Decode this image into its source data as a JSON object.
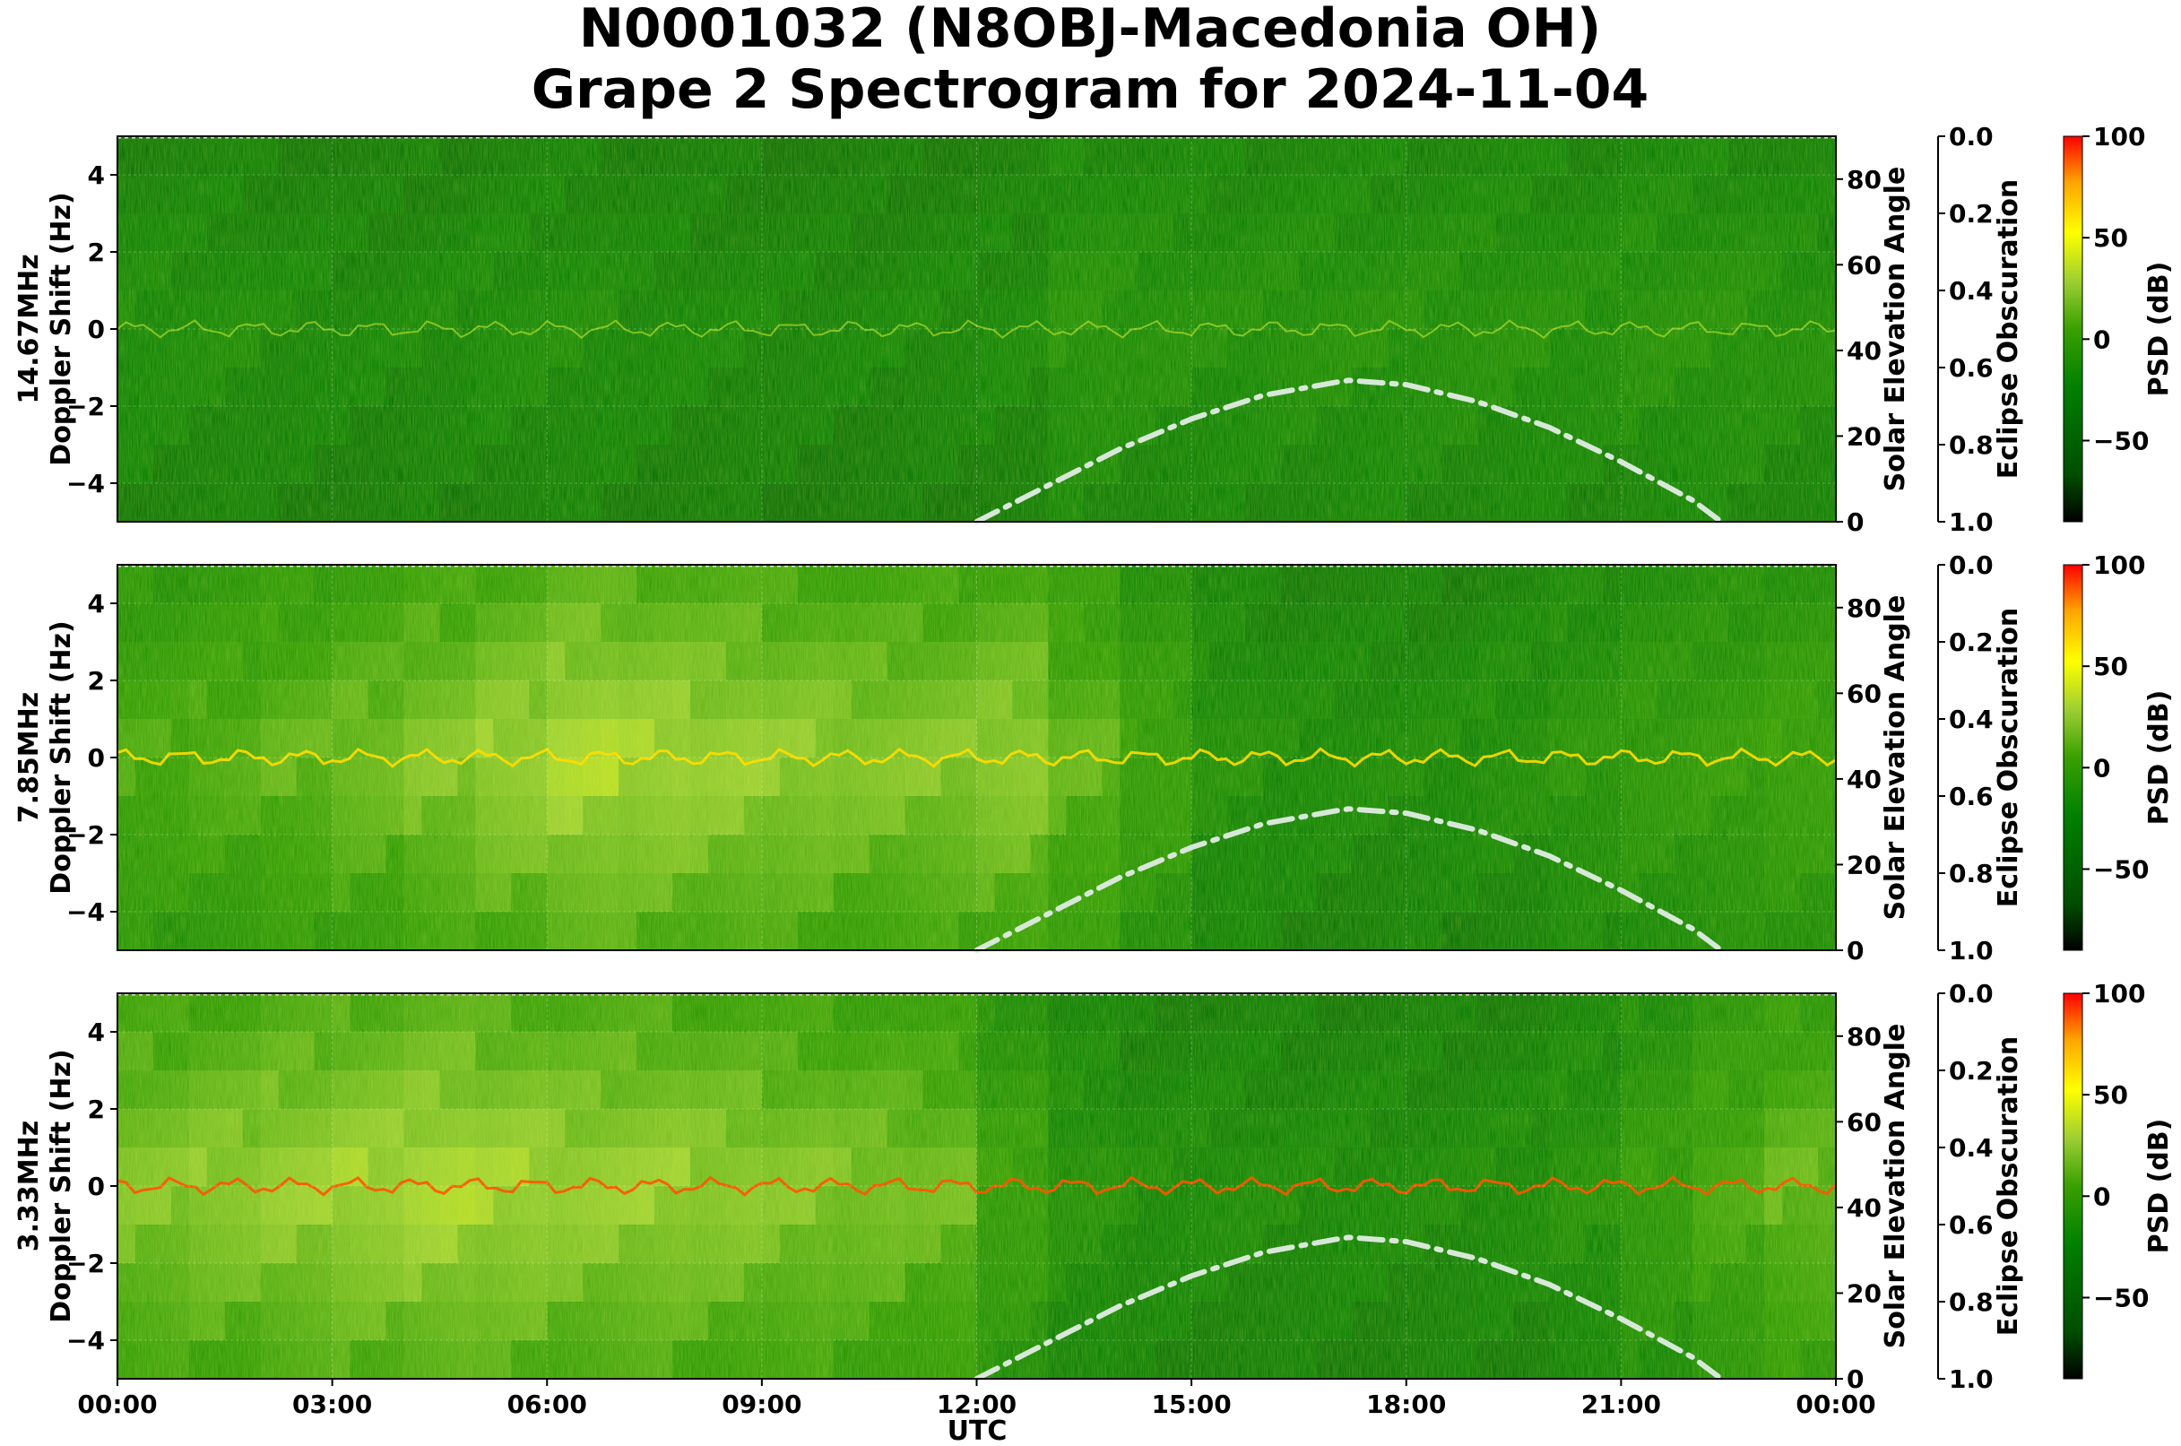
{
  "title_line1": "N0001032 (N8OBJ-Macedonia OH)",
  "title_line2": "Grape 2 Spectrogram for 2024-11-04",
  "xlabel": "UTC",
  "x_ticks": [
    "00:00",
    "03:00",
    "06:00",
    "09:00",
    "12:00",
    "15:00",
    "18:00",
    "21:00",
    "00:00"
  ],
  "left_ticks": [
    "4",
    "2",
    "0",
    "−2",
    "−4"
  ],
  "elev_ticks": [
    "80",
    "60",
    "40",
    "20",
    "0"
  ],
  "obsc_ticks": [
    "0.0",
    "0.2",
    "0.4",
    "0.6",
    "0.8",
    "1.0"
  ],
  "cbar_ticks": [
    "100",
    "50",
    "0",
    "−50"
  ],
  "ylabel_doppler": "Doppler Shift (Hz)",
  "ylabel_elev": "Solar Elevation Angle",
  "ylabel_obsc": "Eclipse Obscuration",
  "cbar_label": "PSD (dB)",
  "colors": {
    "colormap": [
      "#000000",
      "#006400",
      "#008000",
      "#33a300",
      "#9acd32",
      "#ffff00",
      "#ffa500",
      "#ff0000"
    ],
    "elevation_curve": "#d8e8d8",
    "background_green": "#0a7a0a"
  },
  "chart_data": [
    {
      "type": "heatmap",
      "label": "14.67MHz",
      "ylabel": "Doppler Shift (Hz)",
      "xlim": [
        "00:00",
        "24:00"
      ],
      "ylim": [
        -5,
        5
      ],
      "y2label": "Solar Elevation Angle",
      "y2lim": [
        0,
        90
      ],
      "y3label": "Eclipse Obscuration",
      "y3lim": [
        1.0,
        0.0
      ],
      "colorbar": {
        "label": "PSD (dB)",
        "range": [
          -90,
          100
        ]
      },
      "grid": true,
      "solar_elevation": {
        "x": [
          "12:00",
          "13:00",
          "14:00",
          "15:00",
          "16:00",
          "17:00",
          "17:12",
          "18:00",
          "19:00",
          "20:00",
          "21:00",
          "22:00",
          "22:24"
        ],
        "y": [
          0,
          8.5,
          17,
          24,
          29.5,
          32.5,
          33,
          32,
          28,
          22,
          14,
          5,
          0
        ]
      }
    },
    {
      "type": "heatmap",
      "label": "7.85MHz",
      "ylabel": "Doppler Shift (Hz)",
      "xlim": [
        "00:00",
        "24:00"
      ],
      "ylim": [
        -5,
        5
      ],
      "y2label": "Solar Elevation Angle",
      "y2lim": [
        0,
        90
      ],
      "y3label": "Eclipse Obscuration",
      "y3lim": [
        1.0,
        0.0
      ],
      "colorbar": {
        "label": "PSD (dB)",
        "range": [
          -90,
          100
        ]
      },
      "grid": true,
      "solar_elevation": {
        "x": [
          "12:00",
          "13:00",
          "14:00",
          "15:00",
          "16:00",
          "17:00",
          "17:12",
          "18:00",
          "19:00",
          "20:00",
          "21:00",
          "22:00",
          "22:24"
        ],
        "y": [
          0,
          8.5,
          17,
          24,
          29.5,
          32.5,
          33,
          32,
          28,
          22,
          14,
          5,
          0
        ]
      }
    },
    {
      "type": "heatmap",
      "label": "3.33MHz",
      "ylabel": "Doppler Shift (Hz)",
      "xlabel": "UTC",
      "xlim": [
        "00:00",
        "24:00"
      ],
      "ylim": [
        -5,
        5
      ],
      "y2label": "Solar Elevation Angle",
      "y2lim": [
        0,
        90
      ],
      "y3label": "Eclipse Obscuration",
      "y3lim": [
        1.0,
        0.0
      ],
      "colorbar": {
        "label": "PSD (dB)",
        "range": [
          -90,
          100
        ]
      },
      "grid": true,
      "solar_elevation": {
        "x": [
          "12:00",
          "13:00",
          "14:00",
          "15:00",
          "16:00",
          "17:00",
          "17:12",
          "18:00",
          "19:00",
          "20:00",
          "21:00",
          "22:00",
          "22:24"
        ],
        "y": [
          0,
          8.5,
          17,
          24,
          29.5,
          32.5,
          33,
          32,
          28,
          22,
          14,
          5,
          0
        ]
      }
    }
  ]
}
